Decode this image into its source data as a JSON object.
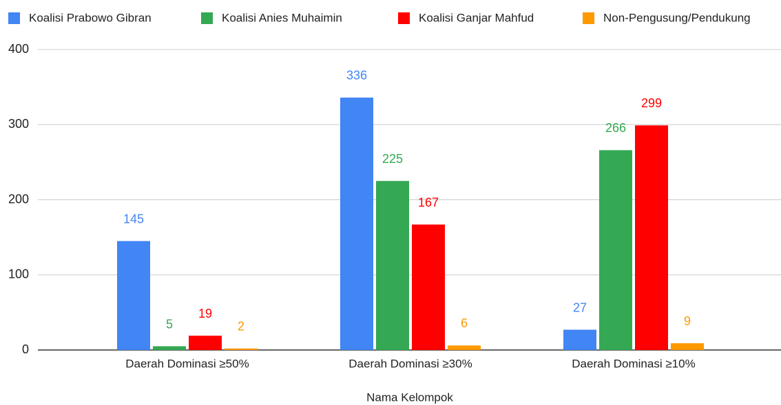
{
  "chart_data": {
    "type": "bar",
    "categories": [
      "Daerah Dominasi ≥50%",
      "Daerah Dominasi ≥30%",
      "Daerah Dominasi ≥10%"
    ],
    "series": [
      {
        "name": "Koalisi Prabowo Gibran",
        "color": "#4285f4",
        "values": [
          145,
          336,
          27
        ]
      },
      {
        "name": "Koalisi Anies Muhaimin",
        "color": "#34a853",
        "values": [
          5,
          225,
          266
        ]
      },
      {
        "name": "Koalisi Ganjar Mahfud",
        "color": "#ff0000",
        "values": [
          19,
          167,
          299
        ]
      },
      {
        "name": "Non-Pengusung/Pendukung",
        "color": "#ff9900",
        "values": [
          2,
          6,
          9
        ]
      }
    ],
    "xlabel": "Nama Kelompok",
    "ylim": [
      0,
      400
    ],
    "yticks": [
      0,
      100,
      200,
      300,
      400
    ],
    "grid": true,
    "legend": "top"
  }
}
